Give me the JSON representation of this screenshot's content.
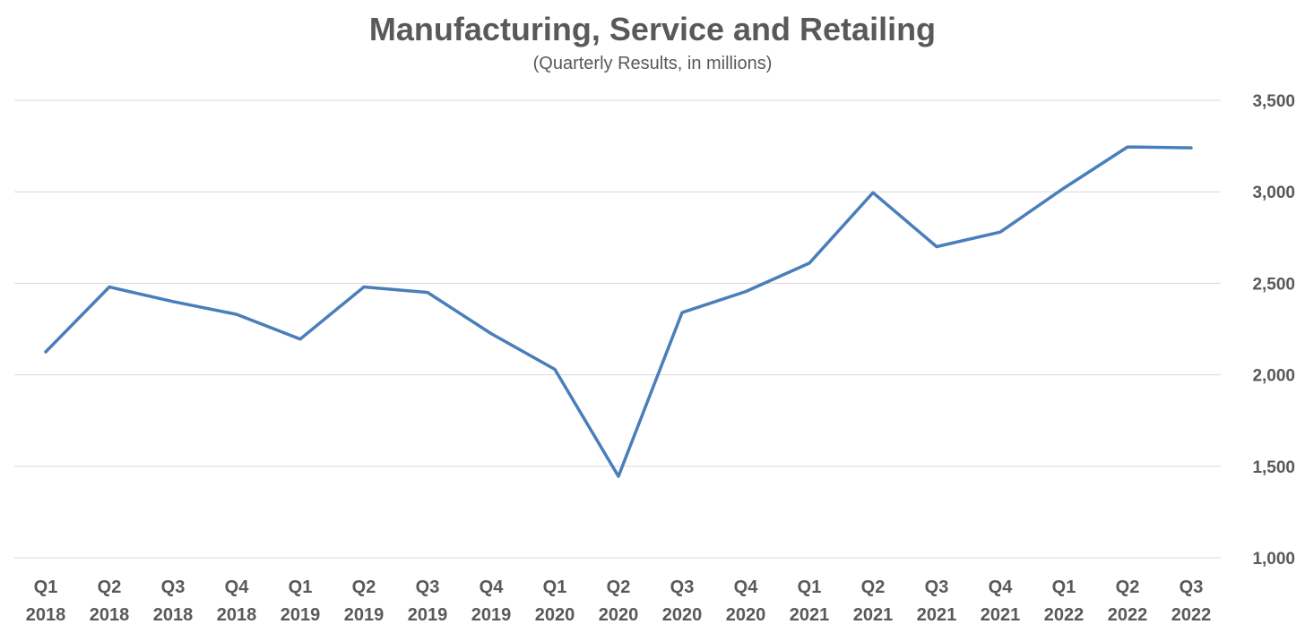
{
  "colors": {
    "series": "#4a7ebb",
    "text": "#595959",
    "grid": "#d9d9d9"
  },
  "chart_data": {
    "type": "line",
    "title": "Manufacturing, Service and Retailing",
    "subtitle": "(Quarterly Results, in millions)",
    "xlabel": "",
    "ylabel": "",
    "grid": true,
    "legend": "none",
    "y_axis_position": "right",
    "ylim": [
      1000,
      3500
    ],
    "yticks": [
      "1,000",
      "1,500",
      "2,000",
      "2,500",
      "3,000",
      "3,500"
    ],
    "categories": [
      [
        "Q1",
        "2018"
      ],
      [
        "Q2",
        "2018"
      ],
      [
        "Q3",
        "2018"
      ],
      [
        "Q4",
        "2018"
      ],
      [
        "Q1",
        "2019"
      ],
      [
        "Q2",
        "2019"
      ],
      [
        "Q3",
        "2019"
      ],
      [
        "Q4",
        "2019"
      ],
      [
        "Q1",
        "2020"
      ],
      [
        "Q2",
        "2020"
      ],
      [
        "Q3",
        "2020"
      ],
      [
        "Q4",
        "2020"
      ],
      [
        "Q1",
        "2021"
      ],
      [
        "Q2",
        "2021"
      ],
      [
        "Q3",
        "2021"
      ],
      [
        "Q4",
        "2021"
      ],
      [
        "Q1",
        "2022"
      ],
      [
        "Q2",
        "2022"
      ],
      [
        "Q3",
        "2022"
      ]
    ],
    "series": [
      {
        "values": [
          2125,
          2480,
          2400,
          2330,
          2195,
          2480,
          2450,
          2225,
          2030,
          1445,
          2340,
          2455,
          2610,
          2995,
          2700,
          2780,
          3020,
          3245,
          3240
        ]
      }
    ]
  }
}
